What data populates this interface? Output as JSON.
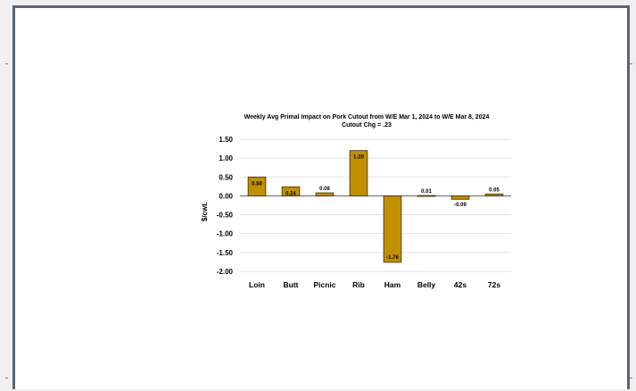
{
  "chart_data": {
    "type": "bar",
    "title": "Weekly Avg Primal Impact on Pork Cutout from W/E Mar 1, 2024 to W/E Mar 8, 2024",
    "subtitle": "Cutout Chg = .23",
    "xlabel": "",
    "ylabel": "$/cwt.",
    "categories": [
      "Loin",
      "Butt",
      "Picnic",
      "Rib",
      "Ham",
      "Belly",
      "42s",
      "72s"
    ],
    "values": [
      0.5,
      0.24,
      0.08,
      1.2,
      -1.76,
      0.01,
      -0.09,
      0.05
    ],
    "data_labels": [
      "0.50",
      "0.24",
      "0.08",
      "1.20",
      "-1.76",
      "0.01",
      "-0.09",
      "0.05"
    ],
    "ylim": [
      -2.0,
      1.5
    ],
    "yticks": [
      1.5,
      1.0,
      0.5,
      0.0,
      -0.5,
      -1.0,
      -1.5,
      -2.0
    ],
    "ytick_labels": [
      "1.50",
      "1.00",
      "0.50",
      "0.00",
      "-0.50",
      "-1.00",
      "-1.50",
      "-2.00"
    ],
    "grid": true,
    "legend": "none",
    "colors": {
      "bar_fill": "#C09000",
      "bar_stroke": "#3a2a00",
      "grid": "#d9d9d9",
      "axis": "#595959",
      "text": "#000000"
    }
  }
}
